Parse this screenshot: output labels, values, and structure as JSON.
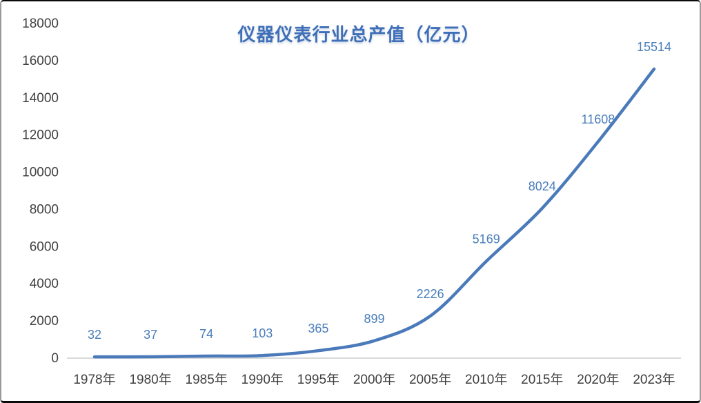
{
  "chart_data": {
    "type": "line",
    "title": "仪器仪表行业总产值（亿元）",
    "categories": [
      "1978年",
      "1980年",
      "1985年",
      "1990年",
      "1995年",
      "2000年",
      "2005年",
      "2010年",
      "2015年",
      "2020年",
      "2023年"
    ],
    "series": [
      {
        "name": "仪器仪表行业总产值",
        "values": [
          32,
          37,
          74,
          103,
          365,
          899,
          2226,
          5169,
          8024,
          11608,
          15514
        ]
      }
    ],
    "data_labels": [
      "32",
      "37",
      "74",
      "103",
      "365",
      "899",
      "2226",
      "5169",
      "8024",
      "11608",
      "15514"
    ],
    "xlabel": "",
    "ylabel": "",
    "ylim": [
      0,
      18000
    ],
    "yticks": [
      0,
      2000,
      4000,
      6000,
      8000,
      10000,
      12000,
      14000,
      16000,
      18000
    ],
    "grid": false,
    "legend_position": "none",
    "line_style": "smooth",
    "colors": {
      "line": "#4A7AB9",
      "data_label": "#4A7EBB",
      "title": "#3E6FB8",
      "axis_text": "#404040",
      "axis_line": "#D9D9D9",
      "background": "#FFFFFF"
    }
  }
}
